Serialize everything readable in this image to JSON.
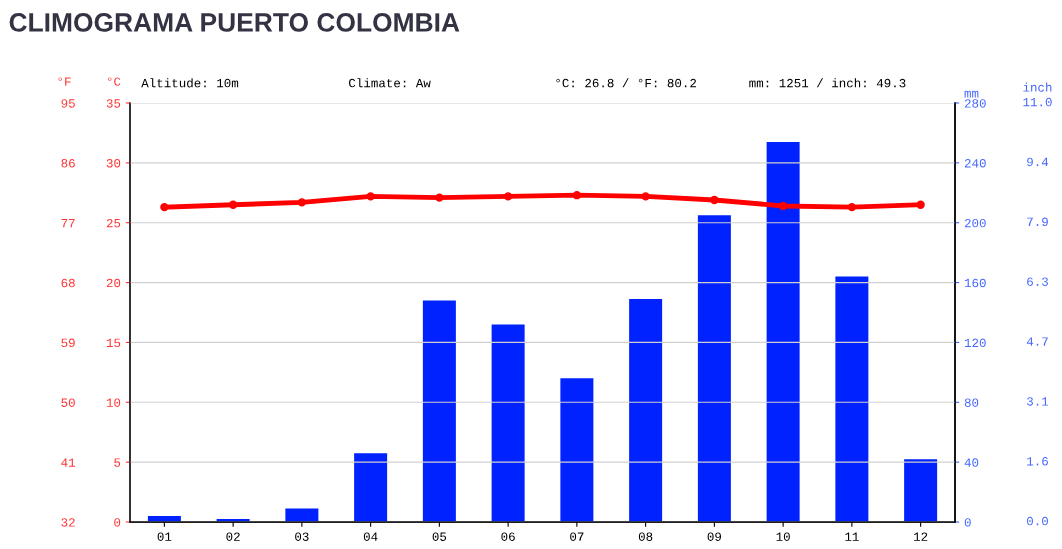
{
  "chart_data": {
    "type": "bar",
    "title": "CLIMOGRAMA PUERTO COLOMBIA",
    "annotations": [
      "Altitude: 10m",
      "Climate: Aw",
      "°C: 26.8 / °F: 80.2",
      "mm: 1251 / inch: 49.3",
      "inch",
      "0.0",
      "1.6",
      "3.1",
      "4.7",
      "6.3",
      "7.9",
      "9.4",
      "11.0"
    ],
    "categories": [
      "01",
      "02",
      "03",
      "04",
      "05",
      "06",
      "07",
      "08",
      "09",
      "10",
      "11",
      "12"
    ],
    "series": [
      {
        "axis": "y2",
        "color": "#0022ff",
        "values": [
          4,
          2,
          9,
          46,
          148,
          132,
          96,
          149,
          205,
          254,
          164,
          42
        ]
      },
      {
        "type": "line",
        "axis": "y",
        "color": "#ff0000",
        "marker": "circle",
        "line_style": "solid",
        "values": [
          26.3,
          26.5,
          26.7,
          27.2,
          27.1,
          27.2,
          27.3,
          27.2,
          26.9,
          26.4,
          26.3,
          26.5
        ]
      }
    ],
    "ylabel": "°C",
    "ylim": [
      0,
      35
    ],
    "yticks": [
      0,
      5,
      10,
      15,
      20,
      25,
      30,
      35
    ],
    "y2label": "mm",
    "y2lim": [
      0,
      280
    ],
    "y2ticks": [
      0,
      40,
      80,
      120,
      160,
      200,
      240,
      280
    ],
    "y3label": "°F",
    "y3lim": [
      32,
      95
    ],
    "y3ticks": [
      32,
      41,
      50,
      59,
      68,
      77,
      86,
      95
    ],
    "grid": "y"
  }
}
